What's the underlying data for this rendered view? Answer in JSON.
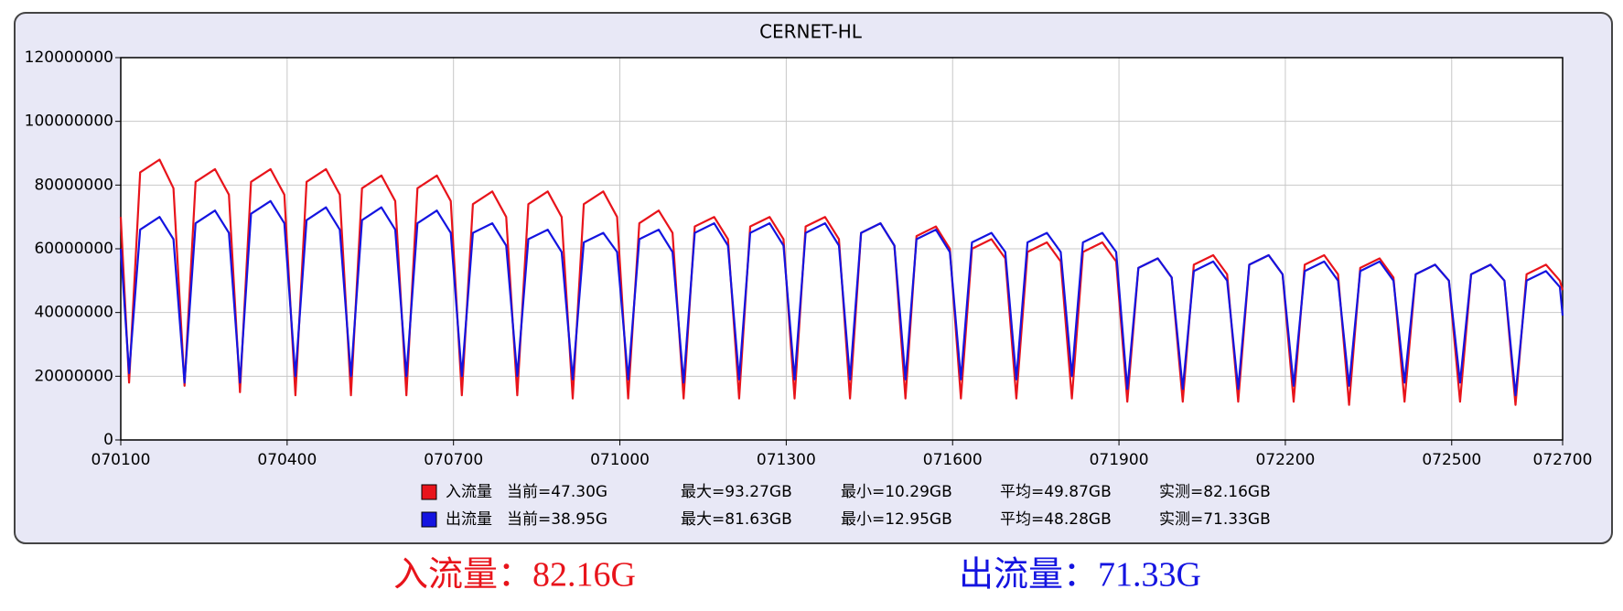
{
  "chart_data": {
    "type": "line",
    "title": "CERNET-HL",
    "x": [
      1,
      1.15,
      1.35,
      1.7,
      1.95,
      2.15,
      2.35,
      2.7,
      2.95,
      3.15,
      3.35,
      3.7,
      3.95,
      4.15,
      4.35,
      4.7,
      4.95,
      5.15,
      5.35,
      5.7,
      5.95,
      6.15,
      6.35,
      6.7,
      6.95,
      7.15,
      7.35,
      7.7,
      7.95,
      8.15,
      8.35,
      8.7,
      8.95,
      9.15,
      9.35,
      9.7,
      9.95,
      10.15,
      10.35,
      10.7,
      10.95,
      11.15,
      11.35,
      11.7,
      11.95,
      12.15,
      12.35,
      12.7,
      12.95,
      13.15,
      13.35,
      13.7,
      13.95,
      14.15,
      14.35,
      14.7,
      14.95,
      15.15,
      15.35,
      15.7,
      15.95,
      16.15,
      16.35,
      16.7,
      16.95,
      17.15,
      17.35,
      17.7,
      17.95,
      18.15,
      18.35,
      18.7,
      18.95,
      19.15,
      19.35,
      19.7,
      19.95,
      20.15,
      20.35,
      20.7,
      20.95,
      21.15,
      21.35,
      21.7,
      21.95,
      22.15,
      22.35,
      22.7,
      22.95,
      23.15,
      23.35,
      23.7,
      23.95,
      24.15,
      24.35,
      24.7,
      24.95,
      25.15,
      25.35,
      25.7,
      25.95,
      26.15,
      26.35,
      26.7,
      26.95,
      27
    ],
    "series": [
      {
        "name": "入流量",
        "color": "#e8141b",
        "stats": [
          "当前=47.30G",
          "最大=93.27GB",
          "最小=10.29GB",
          "平均=49.87GB",
          "实测=82.16GB"
        ],
        "values": [
          70000000,
          18000000,
          84000000,
          88000000,
          79000000,
          17000000,
          81000000,
          85000000,
          77000000,
          15000000,
          81000000,
          85000000,
          77000000,
          14000000,
          81000000,
          85000000,
          77000000,
          14000000,
          79000000,
          83000000,
          75000000,
          14000000,
          79000000,
          83000000,
          75000000,
          14000000,
          74000000,
          78000000,
          70000000,
          14000000,
          74000000,
          78000000,
          70000000,
          13000000,
          74000000,
          78000000,
          70000000,
          13000000,
          68000000,
          72000000,
          65000000,
          13000000,
          67000000,
          70000000,
          63000000,
          13000000,
          67000000,
          70000000,
          63000000,
          13000000,
          67000000,
          70000000,
          63000000,
          13000000,
          65000000,
          68000000,
          61000000,
          13000000,
          64000000,
          67000000,
          60000000,
          13000000,
          60000000,
          63000000,
          57000000,
          13000000,
          59000000,
          62000000,
          56000000,
          13000000,
          59000000,
          62000000,
          56000000,
          12000000,
          54000000,
          57000000,
          51000000,
          12000000,
          55000000,
          58000000,
          52000000,
          12000000,
          55000000,
          58000000,
          52000000,
          12000000,
          55000000,
          58000000,
          52000000,
          11000000,
          54000000,
          57000000,
          51000000,
          12000000,
          52000000,
          55000000,
          50000000,
          12000000,
          52000000,
          55000000,
          50000000,
          11000000,
          52000000,
          55000000,
          50000000,
          47000000
        ]
      },
      {
        "name": "出流量",
        "color": "#1414e0",
        "stats": [
          "当前=38.95G",
          "最大=81.63GB",
          "最小=12.95GB",
          "平均=48.28GB",
          "实测=71.33GB"
        ],
        "values": [
          60000000,
          21000000,
          66000000,
          70000000,
          63000000,
          18000000,
          68000000,
          72000000,
          65000000,
          18000000,
          71000000,
          75000000,
          68000000,
          20000000,
          69000000,
          73000000,
          66000000,
          20000000,
          69000000,
          73000000,
          66000000,
          20000000,
          68000000,
          72000000,
          65000000,
          20000000,
          65000000,
          68000000,
          61000000,
          20000000,
          63000000,
          66000000,
          59000000,
          19000000,
          62000000,
          65000000,
          59000000,
          19000000,
          63000000,
          66000000,
          59000000,
          18000000,
          65000000,
          68000000,
          61000000,
          19000000,
          65000000,
          68000000,
          61000000,
          19000000,
          65000000,
          68000000,
          61000000,
          19000000,
          65000000,
          68000000,
          61000000,
          19000000,
          63000000,
          66000000,
          59000000,
          19000000,
          62000000,
          65000000,
          59000000,
          19000000,
          62000000,
          65000000,
          59000000,
          20000000,
          62000000,
          65000000,
          59000000,
          16000000,
          54000000,
          57000000,
          51000000,
          16000000,
          53000000,
          56000000,
          50000000,
          16000000,
          55000000,
          58000000,
          52000000,
          17000000,
          53000000,
          56000000,
          50000000,
          17000000,
          53000000,
          56000000,
          50000000,
          18000000,
          52000000,
          55000000,
          50000000,
          18000000,
          52000000,
          55000000,
          50000000,
          14000000,
          50000000,
          53000000,
          48000000,
          39000000
        ]
      }
    ],
    "xlim": [
      1,
      27
    ],
    "xticks": [
      {
        "value": 1,
        "label": "070100"
      },
      {
        "value": 4,
        "label": "070400"
      },
      {
        "value": 7,
        "label": "070700"
      },
      {
        "value": 10,
        "label": "071000"
      },
      {
        "value": 13,
        "label": "071300"
      },
      {
        "value": 16,
        "label": "071600"
      },
      {
        "value": 19,
        "label": "071900"
      },
      {
        "value": 22,
        "label": "072200"
      },
      {
        "value": 25,
        "label": "072500"
      },
      {
        "value": 27,
        "label": "072700"
      }
    ],
    "ylim": [
      0,
      120000000
    ],
    "yticks": [
      0,
      20000000,
      40000000,
      60000000,
      80000000,
      100000000,
      120000000
    ],
    "grid": true,
    "summary": [
      {
        "text": "入流量：82.16G",
        "color": "#e8141b"
      },
      {
        "text": "出流量：71.33G",
        "color": "#1414e0"
      }
    ]
  }
}
